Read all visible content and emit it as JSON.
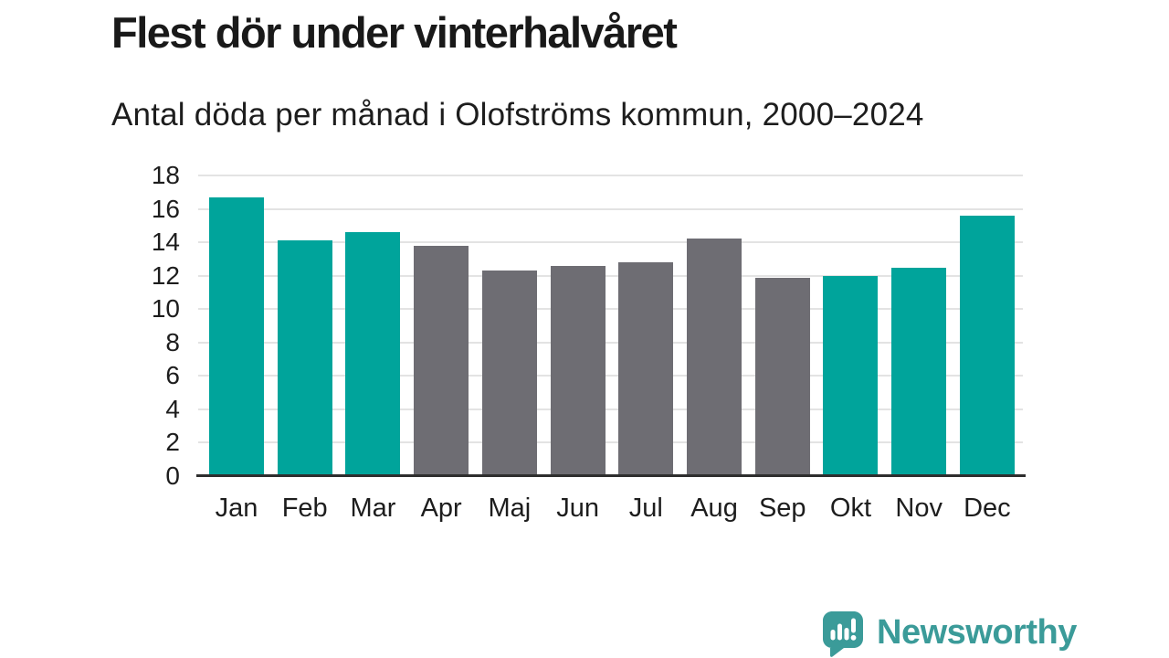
{
  "title": "Flest dör under vinterhalvåret",
  "subtitle": "Antal döda per månad i Olofströms kommun, 2000–2024",
  "chart_data": {
    "type": "bar",
    "categories": [
      "Jan",
      "Feb",
      "Mar",
      "Apr",
      "Maj",
      "Jun",
      "Jul",
      "Aug",
      "Sep",
      "Okt",
      "Nov",
      "Dec"
    ],
    "values": [
      16.7,
      14.1,
      14.6,
      13.8,
      12.3,
      12.6,
      12.8,
      14.2,
      11.9,
      12.0,
      12.5,
      15.6
    ],
    "bar_color_keys": [
      "winter",
      "winter",
      "winter",
      "summer",
      "summer",
      "summer",
      "summer",
      "summer",
      "summer",
      "winter",
      "winter",
      "winter"
    ],
    "palette": {
      "winter": "#00a49b",
      "summer": "#6e6d73"
    },
    "title": "Flest dör under vinterhalvåret",
    "subtitle": "Antal döda per månad i Olofströms kommun, 2000–2024",
    "xlabel": "",
    "ylabel": "",
    "ylim": [
      0,
      18
    ],
    "yticks": [
      0,
      2,
      4,
      6,
      8,
      10,
      12,
      14,
      16,
      18
    ],
    "grid": true,
    "legend": "none",
    "colors_meaning": {
      "winter": "teal highlighted winter-half months",
      "summer": "gray summer-half months"
    },
    "axis_color": "#2e2e2e",
    "gridline_color": "#e3e3e3"
  },
  "branding": {
    "logo_text": "Newsworthy",
    "logo_color": "#3b9b99",
    "logo_icon": "speech-bubble-with-bar-chart-and-exclamation"
  }
}
